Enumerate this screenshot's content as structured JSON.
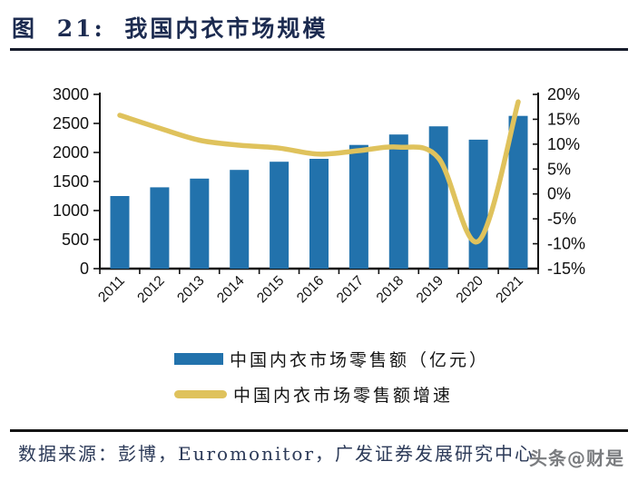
{
  "header": {
    "title": "图 21: 我国内衣市场规模"
  },
  "chart_data": {
    "type": "bar",
    "title": "我国内衣市场规模",
    "categories": [
      "2011",
      "2012",
      "2013",
      "2014",
      "2015",
      "2016",
      "2017",
      "2018",
      "2019",
      "2020",
      "2021"
    ],
    "series": [
      {
        "name": "中国内衣市场零售额（亿元）",
        "type": "bar",
        "axis": "left",
        "color": "#2272AC",
        "values": [
          1250,
          1400,
          1550,
          1700,
          1840,
          1890,
          2130,
          2310,
          2450,
          2220,
          2630
        ]
      },
      {
        "name": "中国内衣市场零售额增速",
        "type": "line",
        "axis": "right",
        "color": "#DFC25C",
        "values": [
          15.8,
          13.2,
          10.8,
          9.8,
          9.2,
          8.0,
          8.7,
          9.4,
          7.2,
          -9.5,
          18.5
        ]
      }
    ],
    "left_axis": {
      "min": 0,
      "max": 3000,
      "step": 500,
      "ticks": [
        "3000",
        "2500",
        "2000",
        "1500",
        "1000",
        "500",
        "0"
      ]
    },
    "right_axis": {
      "min": -15,
      "max": 20,
      "step": 5,
      "ticks": [
        "20%",
        "15%",
        "10%",
        "5%",
        "0%",
        "-5%",
        "-10%",
        "-15%"
      ]
    },
    "grid": false,
    "legend_position": "bottom"
  },
  "footer": {
    "source": "数据来源：彭博，Euromonitor，广发证券发展研究中心",
    "watermark": "头条@财是"
  }
}
